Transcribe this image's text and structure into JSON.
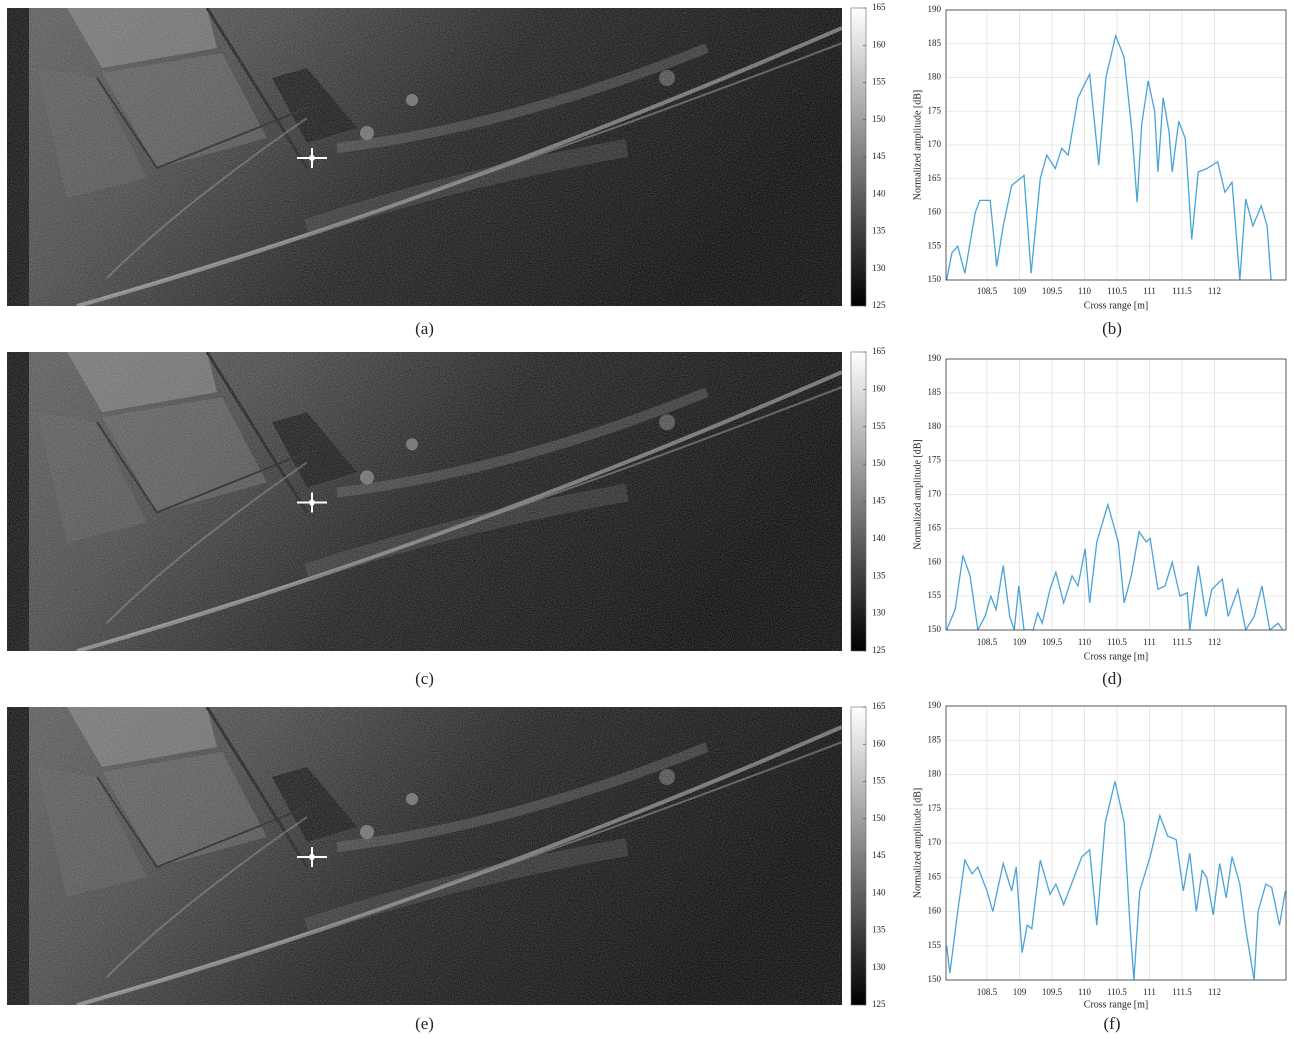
{
  "chart_data": [
    {
      "type": "image",
      "label": "(a)",
      "clim": [
        125,
        165
      ],
      "cticks": [
        125,
        130,
        135,
        140,
        145,
        150,
        155,
        160,
        165
      ]
    },
    {
      "type": "line",
      "label": "(b)",
      "xlabel": "Cross range [m]",
      "ylabel": "Normalized amplitude [dB]",
      "color": "#4aa3d8",
      "grid": true,
      "xlim": [
        107.87,
        113.1
      ],
      "ylim": [
        150,
        190
      ],
      "xticks": [
        108.5,
        109,
        109.5,
        110,
        110.5,
        111,
        111.5,
        112
      ],
      "yticks": [
        150,
        155,
        160,
        165,
        170,
        175,
        180,
        185,
        190
      ],
      "x": [
        107.88,
        107.96,
        108.05,
        108.16,
        108.32,
        108.39,
        108.55,
        108.65,
        108.75,
        108.88,
        109.07,
        109.18,
        109.32,
        109.42,
        109.55,
        109.65,
        109.75,
        109.9,
        110.08,
        110.22,
        110.33,
        110.48,
        110.61,
        110.73,
        110.81,
        110.88,
        110.98,
        111.08,
        111.13,
        111.21,
        111.3,
        111.35,
        111.45,
        111.55,
        111.65,
        111.75,
        111.88,
        112.05,
        112.16,
        112.27,
        112.39,
        112.48,
        112.59,
        112.72,
        112.81,
        112.87
      ],
      "values": [
        150,
        154,
        155,
        151,
        160,
        161.8,
        161.8,
        152,
        158,
        164,
        165.5,
        151,
        165,
        168.5,
        166.5,
        169.5,
        168.5,
        177,
        180.5,
        167,
        180,
        186.2,
        183,
        172,
        161.5,
        173,
        179.5,
        175,
        166,
        177,
        172,
        166,
        173.5,
        171,
        156,
        166,
        166.5,
        167.5,
        163,
        164.5,
        150,
        162,
        158,
        161,
        158,
        150
      ]
    },
    {
      "type": "image",
      "label": "(c)",
      "clim": [
        125,
        165
      ],
      "cticks": [
        125,
        130,
        135,
        140,
        145,
        150,
        155,
        160,
        165
      ]
    },
    {
      "type": "line",
      "label": "(d)",
      "xlabel": "Cross range [m]",
      "ylabel": "Normalized amplitude [dB]",
      "color": "#4aa3d8",
      "grid": true,
      "xlim": [
        107.87,
        113.1
      ],
      "ylim": [
        150,
        190
      ],
      "xticks": [
        108.5,
        109,
        109.5,
        110,
        110.5,
        111,
        111.5,
        112
      ],
      "yticks": [
        150,
        155,
        160,
        165,
        170,
        175,
        180,
        185,
        190
      ],
      "x": [
        107.88,
        108.01,
        108.13,
        108.24,
        108.36,
        108.47,
        108.56,
        108.64,
        108.75,
        108.85,
        108.92,
        108.99,
        109.07,
        109.21,
        109.28,
        109.35,
        109.47,
        109.56,
        109.68,
        109.81,
        109.9,
        110.01,
        110.08,
        110.19,
        110.36,
        110.52,
        110.61,
        110.72,
        110.84,
        110.95,
        111.01,
        111.13,
        111.24,
        111.35,
        111.47,
        111.58,
        111.62,
        111.75,
        111.87,
        111.96,
        112.12,
        112.21,
        112.36,
        112.48,
        112.61,
        112.73,
        112.85,
        112.98,
        113.05
      ],
      "values": [
        150,
        153,
        161,
        158,
        150,
        152,
        155,
        153,
        159.5,
        152,
        150,
        156.5,
        150,
        150,
        152.5,
        151,
        156,
        158.5,
        154,
        158,
        156.5,
        162,
        154,
        163,
        168.5,
        163,
        154,
        158,
        164.5,
        163,
        163.5,
        156,
        156.5,
        160,
        155,
        155.5,
        150,
        159.5,
        152,
        156,
        157.5,
        152,
        156,
        150,
        152,
        156.5,
        150,
        151,
        150
      ]
    },
    {
      "type": "image",
      "label": "(e)",
      "clim": [
        125,
        165
      ],
      "cticks": [
        125,
        130,
        135,
        140,
        145,
        150,
        155,
        160,
        165
      ]
    },
    {
      "type": "line",
      "label": "(f)",
      "xlabel": "Cross range [m]",
      "ylabel": "Normalized amplitude [dB]",
      "color": "#4aa3d8",
      "grid": true,
      "xlim": [
        107.87,
        113.1
      ],
      "ylim": [
        150,
        190
      ],
      "xticks": [
        108.5,
        109,
        109.5,
        110,
        110.5,
        111,
        111.5,
        112
      ],
      "yticks": [
        150,
        155,
        160,
        165,
        170,
        175,
        180,
        185,
        190
      ],
      "x": [
        107.88,
        107.93,
        108.05,
        108.16,
        108.27,
        108.36,
        108.5,
        108.59,
        108.75,
        108.88,
        108.95,
        109.04,
        109.12,
        109.19,
        109.32,
        109.47,
        109.56,
        109.68,
        109.84,
        109.96,
        110.08,
        110.19,
        110.32,
        110.47,
        110.61,
        110.7,
        110.76,
        110.85,
        111.01,
        111.16,
        111.28,
        111.41,
        111.52,
        111.62,
        111.72,
        111.81,
        111.88,
        111.98,
        112.08,
        112.18,
        112.27,
        112.39,
        112.48,
        112.61,
        112.67,
        112.79,
        112.88,
        113.0,
        113.09
      ],
      "values": [
        155,
        151,
        160,
        167.5,
        165.5,
        166.5,
        163,
        160,
        167,
        163,
        166.5,
        154,
        158,
        157.5,
        167.5,
        162.5,
        164,
        161,
        165,
        168,
        169,
        158,
        173,
        179,
        173,
        158,
        150,
        163,
        168,
        174,
        171,
        170.5,
        163,
        168.5,
        160,
        166,
        165,
        159.5,
        167,
        162,
        168,
        164,
        157.5,
        150,
        160,
        164,
        163.5,
        158,
        163
      ]
    }
  ]
}
